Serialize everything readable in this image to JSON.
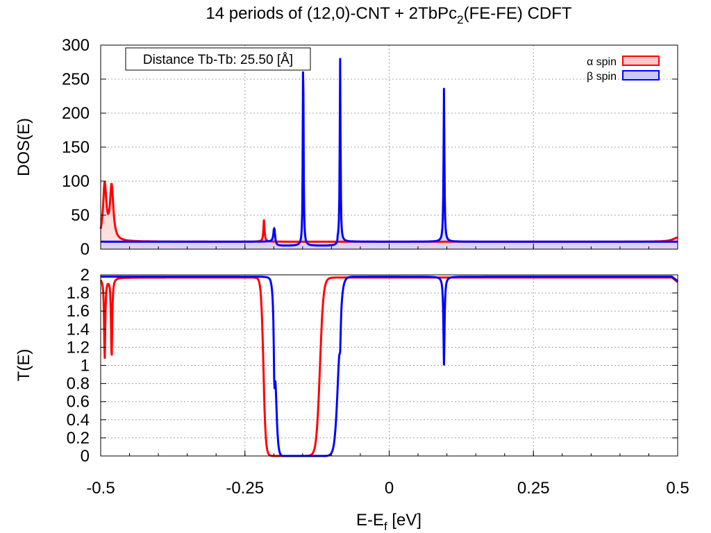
{
  "colors": {
    "alpha": "#ff0000",
    "beta": "#0000ff",
    "alpha_fill": "#ffc8c8",
    "beta_fill": "#c8c8ff",
    "grid": "#a0a0a0"
  },
  "chart_data": [
    {
      "type": "area",
      "title_main": "14 periods of (12,0)-CNT + 2TbPc",
      "title_sub": "2",
      "title_tail": "(FE-FE) CDFT",
      "xlabel": "",
      "ylabel": "DOS(E)",
      "xlim": [
        -0.5,
        0.5
      ],
      "ylim": [
        0,
        300
      ],
      "yticks": [
        "0",
        "50",
        "100",
        "150",
        "200",
        "250",
        "300"
      ],
      "grid": true,
      "legend_position": "top-right",
      "annotation": "Distance Tb-Tb: 25.50 [Å]",
      "baseline": {
        "alpha": 11,
        "beta": 11
      },
      "series": [
        {
          "name": "α spin",
          "peaks": [
            {
              "x": -0.493,
              "height": 82,
              "width": 0.0035
            },
            {
              "x": -0.481,
              "height": 79,
              "width": 0.0035
            },
            {
              "x": -0.217,
              "height": 33,
              "width": 0.0012
            },
            {
              "x": 0.5,
              "height": 6,
              "width": 0.01
            }
          ]
        },
        {
          "name": "β spin",
          "peaks": [
            {
              "x": -0.199,
              "height": 26,
              "width": 0.0015
            },
            {
              "x": -0.149,
              "height": 289,
              "width": 0.0008
            },
            {
              "x": -0.085,
              "height": 270,
              "width": 0.0008
            },
            {
              "x": 0.095,
              "height": 226,
              "width": 0.0009
            }
          ],
          "gap": {
            "from": -0.2,
            "to": -0.09,
            "value": 5
          }
        }
      ]
    },
    {
      "type": "line",
      "xlabel_main": "E-E",
      "xlabel_sub": "f",
      "xlabel_tail": " [eV]",
      "ylabel": "T(E)",
      "xlim": [
        -0.5,
        0.5
      ],
      "ylim": [
        0,
        2
      ],
      "xticks": [
        "-0.5",
        "-0.25",
        "0",
        "0.25",
        "0.5"
      ],
      "yticks": [
        "0",
        "0.2",
        "0.4",
        "0.6",
        "0.8",
        "1",
        "1.2",
        "1.4",
        "1.6",
        "1.8",
        "2"
      ],
      "grid": true,
      "series": [
        {
          "name": "α spin",
          "plateau": 1.97,
          "gap": [
            -0.218,
            -0.12
          ],
          "dips": [
            {
              "x": -0.493,
              "depth": 0.9
            },
            {
              "x": -0.481,
              "depth": 0.9
            }
          ]
        },
        {
          "name": "β spin",
          "plateau": 1.98,
          "gap": [
            -0.197,
            -0.088
          ],
          "dips": [
            {
              "x": -0.199,
              "depth": 0.7
            },
            {
              "x": -0.085,
              "depth": 0.3
            },
            {
              "x": 0.095,
              "depth": 0.98
            }
          ]
        }
      ]
    }
  ]
}
